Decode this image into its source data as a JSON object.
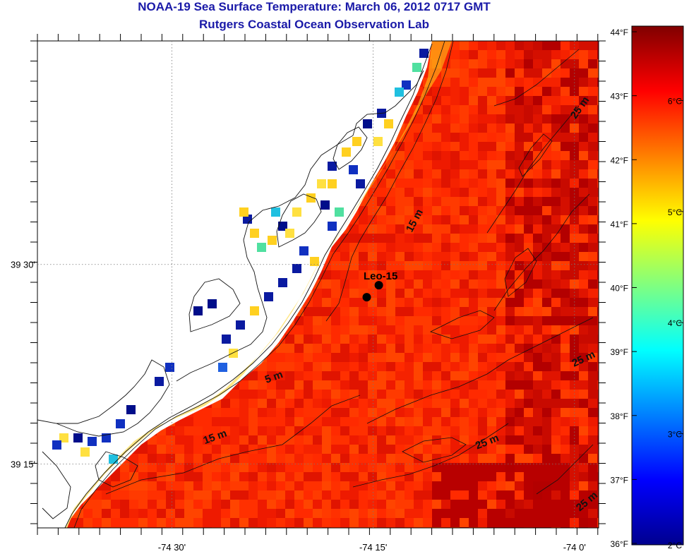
{
  "title": "NOAA-19 Sea Surface Temperature:  March 06, 2012 0717 GMT",
  "subtitle": "Rutgers Coastal Ocean Observation Lab",
  "map": {
    "lon_range": [
      -74.667,
      -73.97
    ],
    "lat_range": [
      39.17,
      39.78
    ],
    "lon_ticks": [
      {
        "lon": -74.5,
        "label": "-74 30'"
      },
      {
        "lon": -74.25,
        "label": "-74 15'"
      },
      {
        "lon": -74.0,
        "label": "-74 0'"
      }
    ],
    "lat_ticks": [
      {
        "lat": 39.5,
        "label": "39 30'"
      },
      {
        "lat": 39.25,
        "label": "39 15'"
      }
    ],
    "station": {
      "name": "Leo-15",
      "points": [
        [
          -74.243,
          39.474
        ],
        [
          -74.258,
          39.459
        ]
      ]
    },
    "contour_labels": [
      {
        "text": "15 m",
        "lon": -74.195,
        "lat": 39.553,
        "rotate": -62
      },
      {
        "text": "5 m",
        "lon": -74.372,
        "lat": 39.355,
        "rotate": -20
      },
      {
        "text": "15 m",
        "lon": -74.445,
        "lat": 39.28,
        "rotate": -20
      },
      {
        "text": "25 m",
        "lon": -74.107,
        "lat": 39.274,
        "rotate": -22
      },
      {
        "text": "25 m",
        "lon": -73.987,
        "lat": 39.378,
        "rotate": -25
      },
      {
        "text": "25 m",
        "lon": -73.99,
        "lat": 39.694,
        "rotate": -55
      },
      {
        "text": "25 m",
        "lon": -73.982,
        "lat": 39.2,
        "rotate": -40
      }
    ]
  },
  "colorbar": {
    "scale": "jet",
    "celsius_range": [
      2.0,
      6.67
    ],
    "fahrenheit_labels": [
      "44°F",
      "43°F",
      "42°F",
      "41°F",
      "40°F",
      "39°F",
      "38°F",
      "37°F",
      "36°F"
    ],
    "celsius_labels": [
      "6°C",
      "5°C",
      "4°C",
      "3°C",
      "2°C"
    ]
  }
}
